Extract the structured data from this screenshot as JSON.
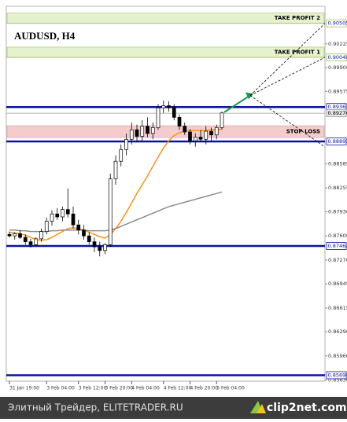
{
  "chart_data": {
    "type": "candlestick",
    "title": "AUDUSD, H4",
    "categories": [
      "31 Jan 19:00",
      null,
      null,
      null,
      null,
      null,
      null,
      "3 Feb 04:00",
      null,
      null,
      null,
      null,
      null,
      "3 Feb 12:00",
      null,
      null,
      null,
      null,
      "3 Feb 20:00",
      null,
      null,
      null,
      null,
      "4 Feb 04:00",
      null,
      null,
      null,
      null,
      null,
      "4 Feb 12:00",
      null,
      null,
      null,
      null,
      "4 Feb 20:00",
      null,
      null,
      null,
      null,
      "5 Feb 04:00",
      null
    ],
    "open": [
      0.8762,
      0.876,
      0.8763,
      0.8758,
      0.8752,
      0.8748,
      0.8756,
      0.8766,
      0.878,
      0.879,
      0.8786,
      0.8796,
      0.879,
      0.8775,
      0.8768,
      0.876,
      0.8752,
      0.8745,
      0.874,
      0.8748,
      0.8838,
      0.8862,
      0.8878,
      0.8892,
      0.8905,
      0.8896,
      0.891,
      0.89,
      0.8908,
      0.8935,
      0.8938,
      0.8935,
      0.8922,
      0.891,
      0.8902,
      0.889,
      0.8895,
      0.8892,
      0.8903,
      0.8898,
      0.8908
    ],
    "high": [
      0.8766,
      0.8765,
      0.8768,
      0.8762,
      0.8756,
      0.8758,
      0.877,
      0.8785,
      0.8795,
      0.8798,
      0.88,
      0.8825,
      0.88,
      0.8782,
      0.8775,
      0.8765,
      0.8758,
      0.8752,
      0.875,
      0.8845,
      0.887,
      0.8885,
      0.89,
      0.8915,
      0.8912,
      0.8918,
      0.8922,
      0.8915,
      0.894,
      0.8945,
      0.8944,
      0.894,
      0.8926,
      0.8915,
      0.8906,
      0.89,
      0.8905,
      0.891,
      0.8908,
      0.8912,
      0.893
    ],
    "low": [
      0.8758,
      0.8755,
      0.8756,
      0.8748,
      0.8744,
      0.8745,
      0.8752,
      0.8762,
      0.8774,
      0.8782,
      0.878,
      0.8785,
      0.877,
      0.8762,
      0.8755,
      0.8748,
      0.8738,
      0.8732,
      0.8735,
      0.8745,
      0.883,
      0.8855,
      0.887,
      0.8885,
      0.8888,
      0.889,
      0.8895,
      0.8892,
      0.8905,
      0.8928,
      0.893,
      0.8918,
      0.8905,
      0.8898,
      0.8885,
      0.8882,
      0.8888,
      0.8885,
      0.889,
      0.8892,
      0.8905
    ],
    "close": [
      0.876,
      0.8763,
      0.8758,
      0.8752,
      0.8748,
      0.8756,
      0.8766,
      0.878,
      0.879,
      0.8786,
      0.8796,
      0.879,
      0.8775,
      0.8768,
      0.876,
      0.8752,
      0.8745,
      0.874,
      0.8748,
      0.8838,
      0.8862,
      0.8878,
      0.8892,
      0.8905,
      0.8896,
      0.891,
      0.89,
      0.8908,
      0.8935,
      0.8938,
      0.8935,
      0.8922,
      0.891,
      0.8902,
      0.889,
      0.8895,
      0.8892,
      0.8903,
      0.8898,
      0.8908,
      0.8928
    ],
    "series": [
      {
        "color": "#f7931e",
        "values": [
          0.8765,
          0.8764,
          0.8763,
          0.8761,
          0.8758,
          0.8755,
          0.8754,
          0.8755,
          0.8758,
          0.8762,
          0.8766,
          0.877,
          0.8771,
          0.877,
          0.8768,
          0.8765,
          0.8762,
          0.8759,
          0.8757,
          0.8762,
          0.877,
          0.878,
          0.8792,
          0.8805,
          0.8818,
          0.883,
          0.8842,
          0.8855,
          0.8868,
          0.888,
          0.889,
          0.8897,
          0.8901,
          0.8903,
          0.8904,
          0.8904,
          0.8904,
          0.8904,
          0.8905,
          0.8905,
          0.8906
        ]
      },
      {
        "color": "#8c8c8c",
        "values": [
          0.8768,
          0.8768,
          0.8767,
          0.8767,
          0.8766,
          0.8766,
          0.8766,
          0.8766,
          0.8767,
          0.8767,
          0.8768,
          0.8768,
          0.8768,
          0.8768,
          0.8768,
          0.8767,
          0.8767,
          0.8767,
          0.8767,
          0.8768,
          0.877,
          0.8773,
          0.8776,
          0.8779,
          0.8782,
          0.8785,
          0.8788,
          0.8791,
          0.8794,
          0.8797,
          0.88,
          0.8802,
          0.8804,
          0.8806,
          0.8808,
          0.881,
          0.8812,
          0.8814,
          0.8816,
          0.8818,
          0.882
        ]
      }
    ],
    "ylim": [
      0.85615,
      0.90738
    ],
    "yticks": [
      0.90225,
      {
        "value": 0.899,
        "label": "0.89900"
      },
      0.89575,
      0.88585,
      0.88255,
      {
        "value": 0.8793,
        "label": "0.87930"
      },
      {
        "value": 0.876,
        "label": "0.87600"
      },
      {
        "value": 0.8727,
        "label": "0.87270"
      },
      0.86945,
      0.86615,
      {
        "value": 0.8629,
        "label": "0.86290"
      },
      {
        "value": 0.8596,
        "label": "0.85960"
      },
      {
        "value": 0.8563,
        "label": "0.85630"
      }
    ],
    "levels": [
      {
        "value": 0.90505,
        "label": "0.90505",
        "color": "#9bbf5a"
      },
      {
        "value": 0.9004,
        "label": "0.90040",
        "color": "#9bbf5a"
      },
      {
        "value": 0.89361,
        "label": "0.89361",
        "color": "#0a14a0"
      },
      {
        "value": 0.89276,
        "label": "0.89276",
        "color": "#9a9a9a"
      },
      {
        "value": 0.88891,
        "label": "0.88891",
        "color": "#0a14a0"
      },
      {
        "value": 0.87462,
        "label": "0.87462",
        "color": "#0a14a0"
      },
      {
        "value": 0.85696,
        "label": "0.85696",
        "color": "#0a14a0"
      }
    ],
    "zones": [
      {
        "label": "TAKE PROFIT 2",
        "from": 0.90505,
        "to": 0.90645,
        "color": "#e6f2cf"
      },
      {
        "label": "TAKE PROFIT 1",
        "from": 0.9004,
        "to": 0.9018,
        "color": "#e6f2cf"
      },
      {
        "label": "STOP LOSS",
        "from": 0.88944,
        "to": 0.89105,
        "color": "#f4cccc"
      }
    ],
    "projection": 0.8952
  },
  "footer": {
    "source": "Элитный Трейдер, ELITETRADER.RU",
    "logo": "clip2net.com"
  }
}
